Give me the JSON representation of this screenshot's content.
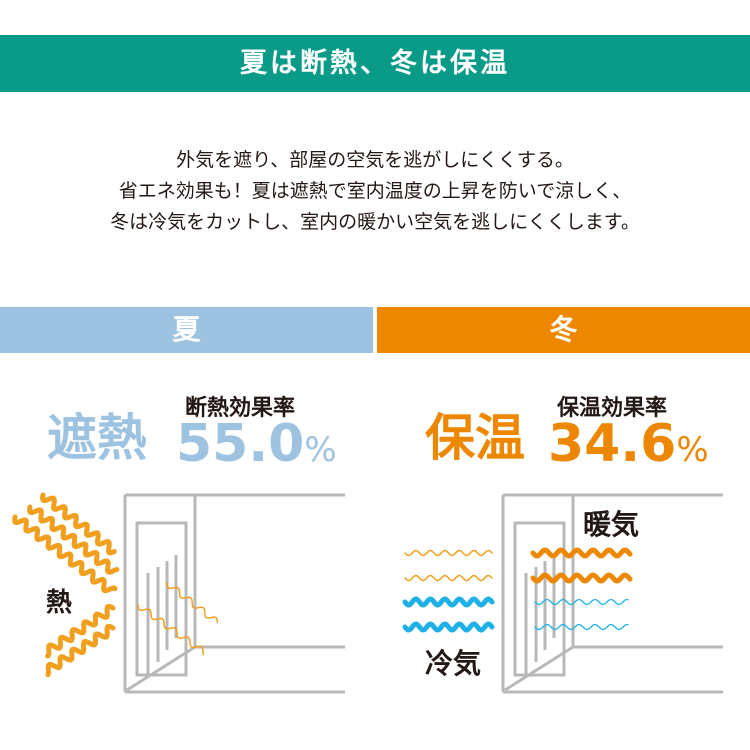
{
  "header": {
    "title": "夏は断熱、冬は保温"
  },
  "intro": {
    "lines": [
      "外気を遮り、部屋の空気を逃がしにくくする。",
      "省エネ効果も！夏は遮熱で室内温度の上昇を防いで涼しく、",
      "冬は冷気をカットし、室内の暖かい空気を逃しにくくします。"
    ]
  },
  "summer": {
    "tab": "夏",
    "headline": "遮熱",
    "metric_label": "断熱効果率",
    "value": "55.0",
    "unit": "%",
    "heat_label": "熱"
  },
  "winter": {
    "tab": "冬",
    "headline": "保温",
    "metric_label": "保温効果率",
    "value": "34.6",
    "unit": "%",
    "warm_label": "暖気",
    "cold_label": "冷気"
  },
  "colors": {
    "teal": "#0a9a88",
    "summer_blue": "#9ec3e1",
    "winter_orange": "#ee8700",
    "heat_orange": "#f0a01e",
    "cold_blue": "#1fb1e6",
    "wall_gray": "#b8b8b8"
  }
}
